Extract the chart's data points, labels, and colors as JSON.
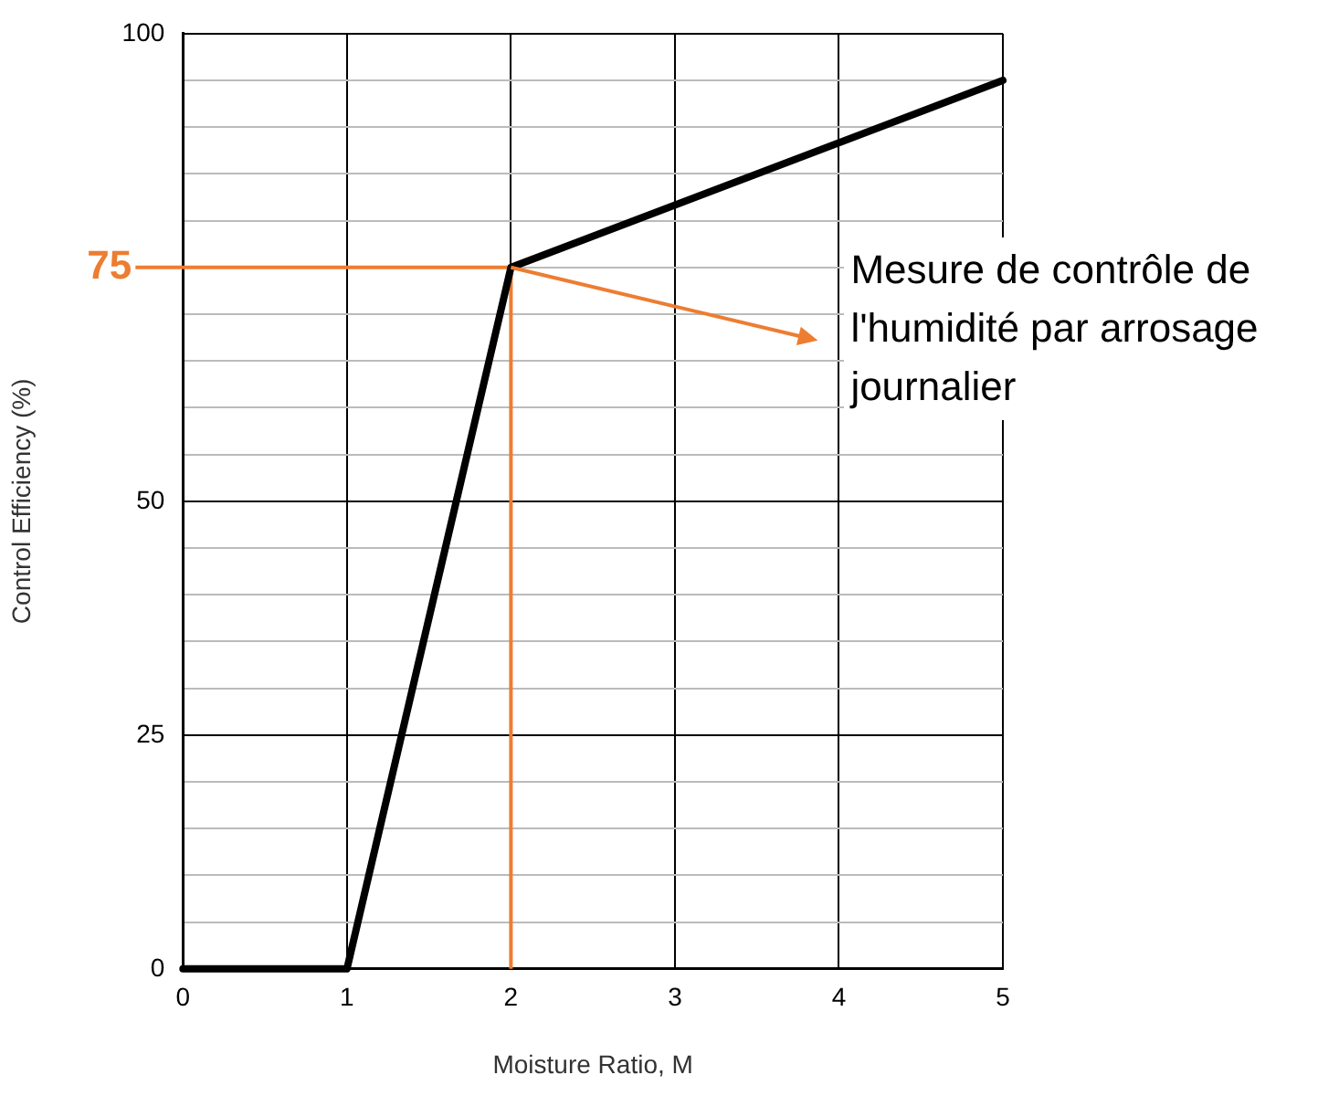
{
  "chart_data": {
    "type": "line",
    "xlabel": "Moisture Ratio, M",
    "ylabel": "Control Efficiency (%)",
    "x": [
      0,
      1,
      2,
      5
    ],
    "series": [
      {
        "color": "#000000",
        "values": [
          0,
          0,
          75,
          95
        ]
      }
    ],
    "ref_lines": [
      {
        "axis": "y",
        "value": 75,
        "label": "75",
        "color": "#ed7d31"
      },
      {
        "axis": "x",
        "value": 2,
        "color": "#ed7d31"
      }
    ],
    "xlim": [
      0,
      5
    ],
    "xticks": [
      0,
      1,
      2,
      3,
      4,
      5
    ],
    "ylim": [
      0,
      100
    ],
    "yticks": [
      0,
      {
        "value": 5,
        "label": null
      },
      {
        "value": 10,
        "label": null
      },
      {
        "value": 15,
        "label": null
      },
      {
        "value": 20,
        "label": null
      },
      25,
      {
        "value": 30,
        "label": null
      },
      {
        "value": 35,
        "label": null
      },
      {
        "value": 40,
        "label": null
      },
      {
        "value": 45,
        "label": null
      },
      50,
      {
        "value": 55,
        "label": null
      },
      {
        "value": 60,
        "label": null
      },
      {
        "value": 65,
        "label": null
      },
      {
        "value": 70,
        "label": null
      },
      {
        "value": 75,
        "label": null
      },
      {
        "value": 80,
        "label": null
      },
      {
        "value": 85,
        "label": null
      },
      {
        "value": 90,
        "label": null
      },
      {
        "value": 95,
        "label": null
      },
      100
    ],
    "grid": true,
    "legend": false,
    "marker": "none",
    "line_style": "solid",
    "annotations": [
      {
        "text": "Mesure de contrôle de l'humidité par arrosage journalier",
        "x": 2,
        "y": 75
      }
    ]
  }
}
